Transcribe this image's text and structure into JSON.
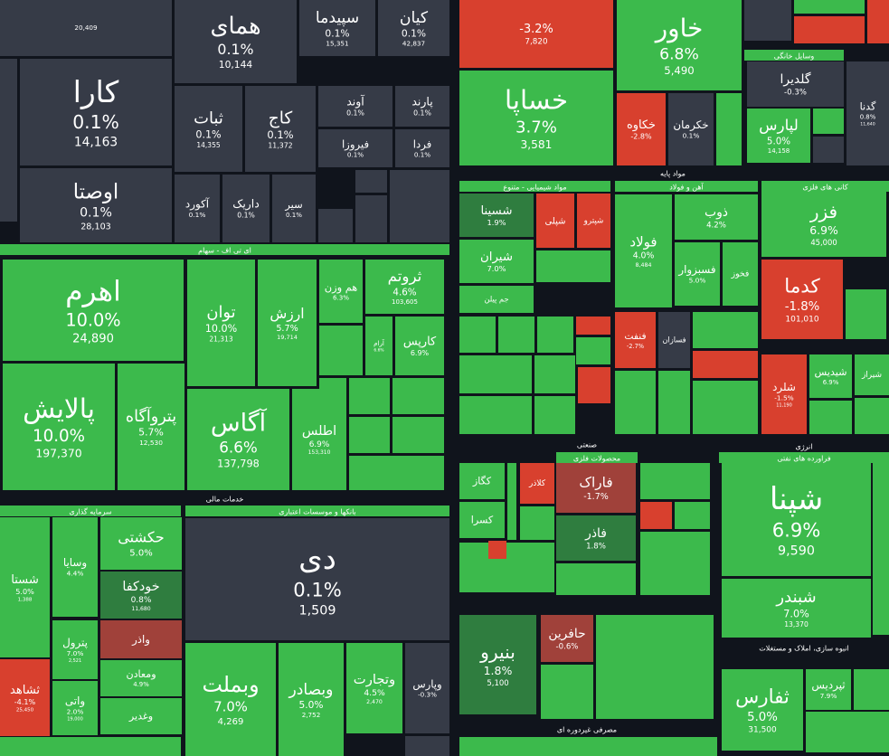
{
  "tiles": [
    {
      "name": "",
      "volume": "20,409",
      "color": "#363b47"
    },
    {
      "name": "همای",
      "change": "0.1%",
      "volume": "10,144",
      "color": "#363b47"
    },
    {
      "name": "سپیدما",
      "change": "0.1%",
      "volume": "15,351",
      "color": "#363b47"
    },
    {
      "name": "کیان",
      "change": "0.1%",
      "volume": "42,837",
      "color": "#363b47"
    },
    {
      "name": "کارا",
      "change": "0.1%",
      "volume": "14,163",
      "color": "#363b47"
    },
    {
      "name": "اوصتا",
      "change": "0.1%",
      "volume": "28,103",
      "color": "#363b47"
    },
    {
      "name": "ثبات",
      "change": "0.1%",
      "volume": "14,355",
      "color": "#363b47"
    },
    {
      "name": "کاج",
      "change": "0.1%",
      "volume": "11,372",
      "color": "#363b47"
    },
    {
      "name": "آوند",
      "change": "0.1%",
      "color": "#363b47"
    },
    {
      "name": "پارند",
      "change": "0.1%",
      "color": "#363b47"
    },
    {
      "name": "فیروزا",
      "change": "0.1%",
      "color": "#363b47"
    },
    {
      "name": "فردا",
      "change": "0.1%",
      "color": "#363b47"
    },
    {
      "name": "آکورد",
      "change": "0.1%",
      "color": "#363b47"
    },
    {
      "name": "داریک",
      "change": "0.1%",
      "color": "#363b47"
    },
    {
      "name": "سیر",
      "change": "0.1%",
      "color": "#363b47"
    },
    {
      "name": "اهرم",
      "change": "10.0%",
      "volume": "24,890",
      "color": "#3cba4c"
    },
    {
      "name": "پالایش",
      "change": "10.0%",
      "volume": "197,370",
      "color": "#3cba4c"
    },
    {
      "name": "پتروآگاه",
      "change": "5.7%",
      "volume": "12,530",
      "color": "#3cba4c"
    },
    {
      "name": "توان",
      "change": "10.0%",
      "volume": "21,313",
      "color": "#3cba4c"
    },
    {
      "name": "ارزش",
      "change": "5.7%",
      "volume": "19,714",
      "color": "#3cba4c"
    },
    {
      "name": "هم وزن",
      "change": "6.3%",
      "color": "#3cba4c"
    },
    {
      "name": "ثروتم",
      "change": "4.6%",
      "volume": "103,605",
      "color": "#3cba4c"
    },
    {
      "name": "آرام",
      "change": "6.6%",
      "color": "#3cba4c"
    },
    {
      "name": "کارپس",
      "change": "6.9%",
      "color": "#3cba4c"
    },
    {
      "name": "آگاس",
      "change": "6.6%",
      "volume": "137,798",
      "color": "#3cba4c"
    },
    {
      "name": "اطلس",
      "change": "6.9%",
      "volume": "153,310",
      "color": "#3cba4c"
    },
    {
      "name": "شستا",
      "change": "5.0%",
      "volume": "1,388",
      "color": "#3cba4c"
    },
    {
      "name": "وسایا",
      "change": "4.4%",
      "color": "#3cba4c"
    },
    {
      "name": "حکشتی",
      "change": "5.0%",
      "color": "#3cba4c"
    },
    {
      "name": "خودکفا",
      "change": "0.8%",
      "volume": "11,680",
      "color": "#2f7d3f"
    },
    {
      "name": "پترول",
      "change": "7.0%",
      "volume": "2,521",
      "color": "#3cba4c"
    },
    {
      "name": "واذر",
      "color": "#a0413a"
    },
    {
      "name": "ثشاهد",
      "change": "-4.1%",
      "volume": "25,450",
      "color": "#d8402e"
    },
    {
      "name": "واتی",
      "change": "2.0%",
      "volume": "19,000",
      "color": "#3cba4c"
    },
    {
      "name": "ومعادن",
      "change": "4.9%",
      "color": "#3cba4c"
    },
    {
      "name": "وغدیر",
      "color": "#3cba4c"
    },
    {
      "name": "دی",
      "change": "0.1%",
      "volume": "1,509",
      "color": "#363b47"
    },
    {
      "name": "وبملت",
      "change": "7.0%",
      "volume": "4,269",
      "color": "#3cba4c"
    },
    {
      "name": "وبصادر",
      "change": "5.0%",
      "volume": "2,752",
      "color": "#3cba4c"
    },
    {
      "name": "وتجارت",
      "change": "4.5%",
      "volume": "2,470",
      "color": "#3cba4c"
    },
    {
      "name": "وپارس",
      "change": "-0.3%",
      "color": "#363b47"
    },
    {
      "name": "",
      "change": "-3.2%",
      "volume": "7,820",
      "color": "#d8402e"
    },
    {
      "name": "خاور",
      "change": "6.8%",
      "volume": "5,490",
      "color": "#3cba4c"
    },
    {
      "name": "خساپا",
      "change": "3.7%",
      "volume": "3,581",
      "color": "#3cba4c"
    },
    {
      "name": "خکاوه",
      "change": "-2.8%",
      "color": "#d8402e"
    },
    {
      "name": "خکرمان",
      "change": "0.1%",
      "color": "#363b47"
    },
    {
      "name": "گلدیرا",
      "change": "-0.3%",
      "color": "#363b47"
    },
    {
      "name": "لپارس",
      "change": "5.0%",
      "volume": "14,158",
      "color": "#3cba4c"
    },
    {
      "name": "گدنا",
      "change": "0.8%",
      "volume": "11,640",
      "color": "#363b47"
    },
    {
      "name": "شسینا",
      "change": "1.9%",
      "color": "#2f7d3f"
    },
    {
      "name": "شپلی",
      "color": "#d8402e"
    },
    {
      "name": "شپترو",
      "color": "#d8402e"
    },
    {
      "name": "شیران",
      "change": "7.0%",
      "color": "#3cba4c"
    },
    {
      "name": "جم پیلن",
      "color": "#3cba4c"
    },
    {
      "name": "فولاد",
      "change": "4.0%",
      "volume": "8,484",
      "color": "#3cba4c"
    },
    {
      "name": "ذوب",
      "change": "4.2%",
      "color": "#3cba4c"
    },
    {
      "name": "فسبزوار",
      "change": "5.0%",
      "color": "#3cba4c"
    },
    {
      "name": "فخوز",
      "color": "#3cba4c"
    },
    {
      "name": "فنفت",
      "change": "-2.7%",
      "color": "#d8402e"
    },
    {
      "name": "فسازان",
      "color": "#363b47"
    },
    {
      "name": "فزر",
      "change": "6.9%",
      "volume": "45,000",
      "color": "#3cba4c"
    },
    {
      "name": "کدما",
      "change": "-1.8%",
      "volume": "101,010",
      "color": "#d8402e"
    },
    {
      "name": "شلرد",
      "change": "-1.5%",
      "volume": "11,190",
      "color": "#d8402e"
    },
    {
      "name": "شیدیس",
      "change": "6.9%",
      "color": "#3cba4c"
    },
    {
      "name": "شیراز",
      "color": "#3cba4c"
    },
    {
      "name": "کگاز",
      "color": "#3cba4c"
    },
    {
      "name": "کسرا",
      "color": "#3cba4c"
    },
    {
      "name": "کلاذر",
      "color": "#d8402e"
    },
    {
      "name": "فاراک",
      "change": "-1.7%",
      "color": "#a0413a"
    },
    {
      "name": "فاذر",
      "change": "1.8%",
      "color": "#2f7d3f"
    },
    {
      "name": "شپنا",
      "change": "6.9%",
      "volume": "9,590",
      "color": "#3cba4c"
    },
    {
      "name": "شبندر",
      "change": "7.0%",
      "volume": "13,370",
      "color": "#3cba4c"
    },
    {
      "name": "ثفارس",
      "change": "5.0%",
      "volume": "31,500",
      "color": "#3cba4c"
    },
    {
      "name": "ثپردیس",
      "change": "7.9%",
      "color": "#3cba4c"
    },
    {
      "name": "بنیرو",
      "change": "1.8%",
      "volume": "5,100",
      "color": "#2f7d3f"
    },
    {
      "name": "حافرین",
      "change": "-0.6%",
      "color": "#a0413a"
    }
  ],
  "headers": [
    {
      "text": "ای تی اف - سهام",
      "color": "#3cba4c"
    },
    {
      "text": "خدمات مالی",
      "color": "#10141c"
    },
    {
      "text": "سرمایه گذاری",
      "color": "#3cba4c"
    },
    {
      "text": "بانکها و موسسات اعتباری",
      "color": "#3cba4c"
    },
    {
      "text": "وسایل خانگی",
      "color": "#3cba4c"
    },
    {
      "text": "مواد پایه",
      "color": "#10141c"
    },
    {
      "text": "مواد شیمیایی - متنوع",
      "color": "#3cba4c"
    },
    {
      "text": "آهن و فولاد",
      "color": "#3cba4c"
    },
    {
      "text": "کانی های فلزی",
      "color": "#3cba4c"
    },
    {
      "text": "صنعتی",
      "color": "#10141c"
    },
    {
      "text": "انرژی",
      "color": "#10141c"
    },
    {
      "text": "فراورده های نفتی",
      "color": "#3cba4c"
    },
    {
      "text": "محصولات فلزی",
      "color": "#3cba4c"
    },
    {
      "text": "انبوه سازی، املاک و مستغلات",
      "color": "#10141c"
    },
    {
      "text": "مصرفی غیردوره ای",
      "color": "#10141c"
    }
  ]
}
